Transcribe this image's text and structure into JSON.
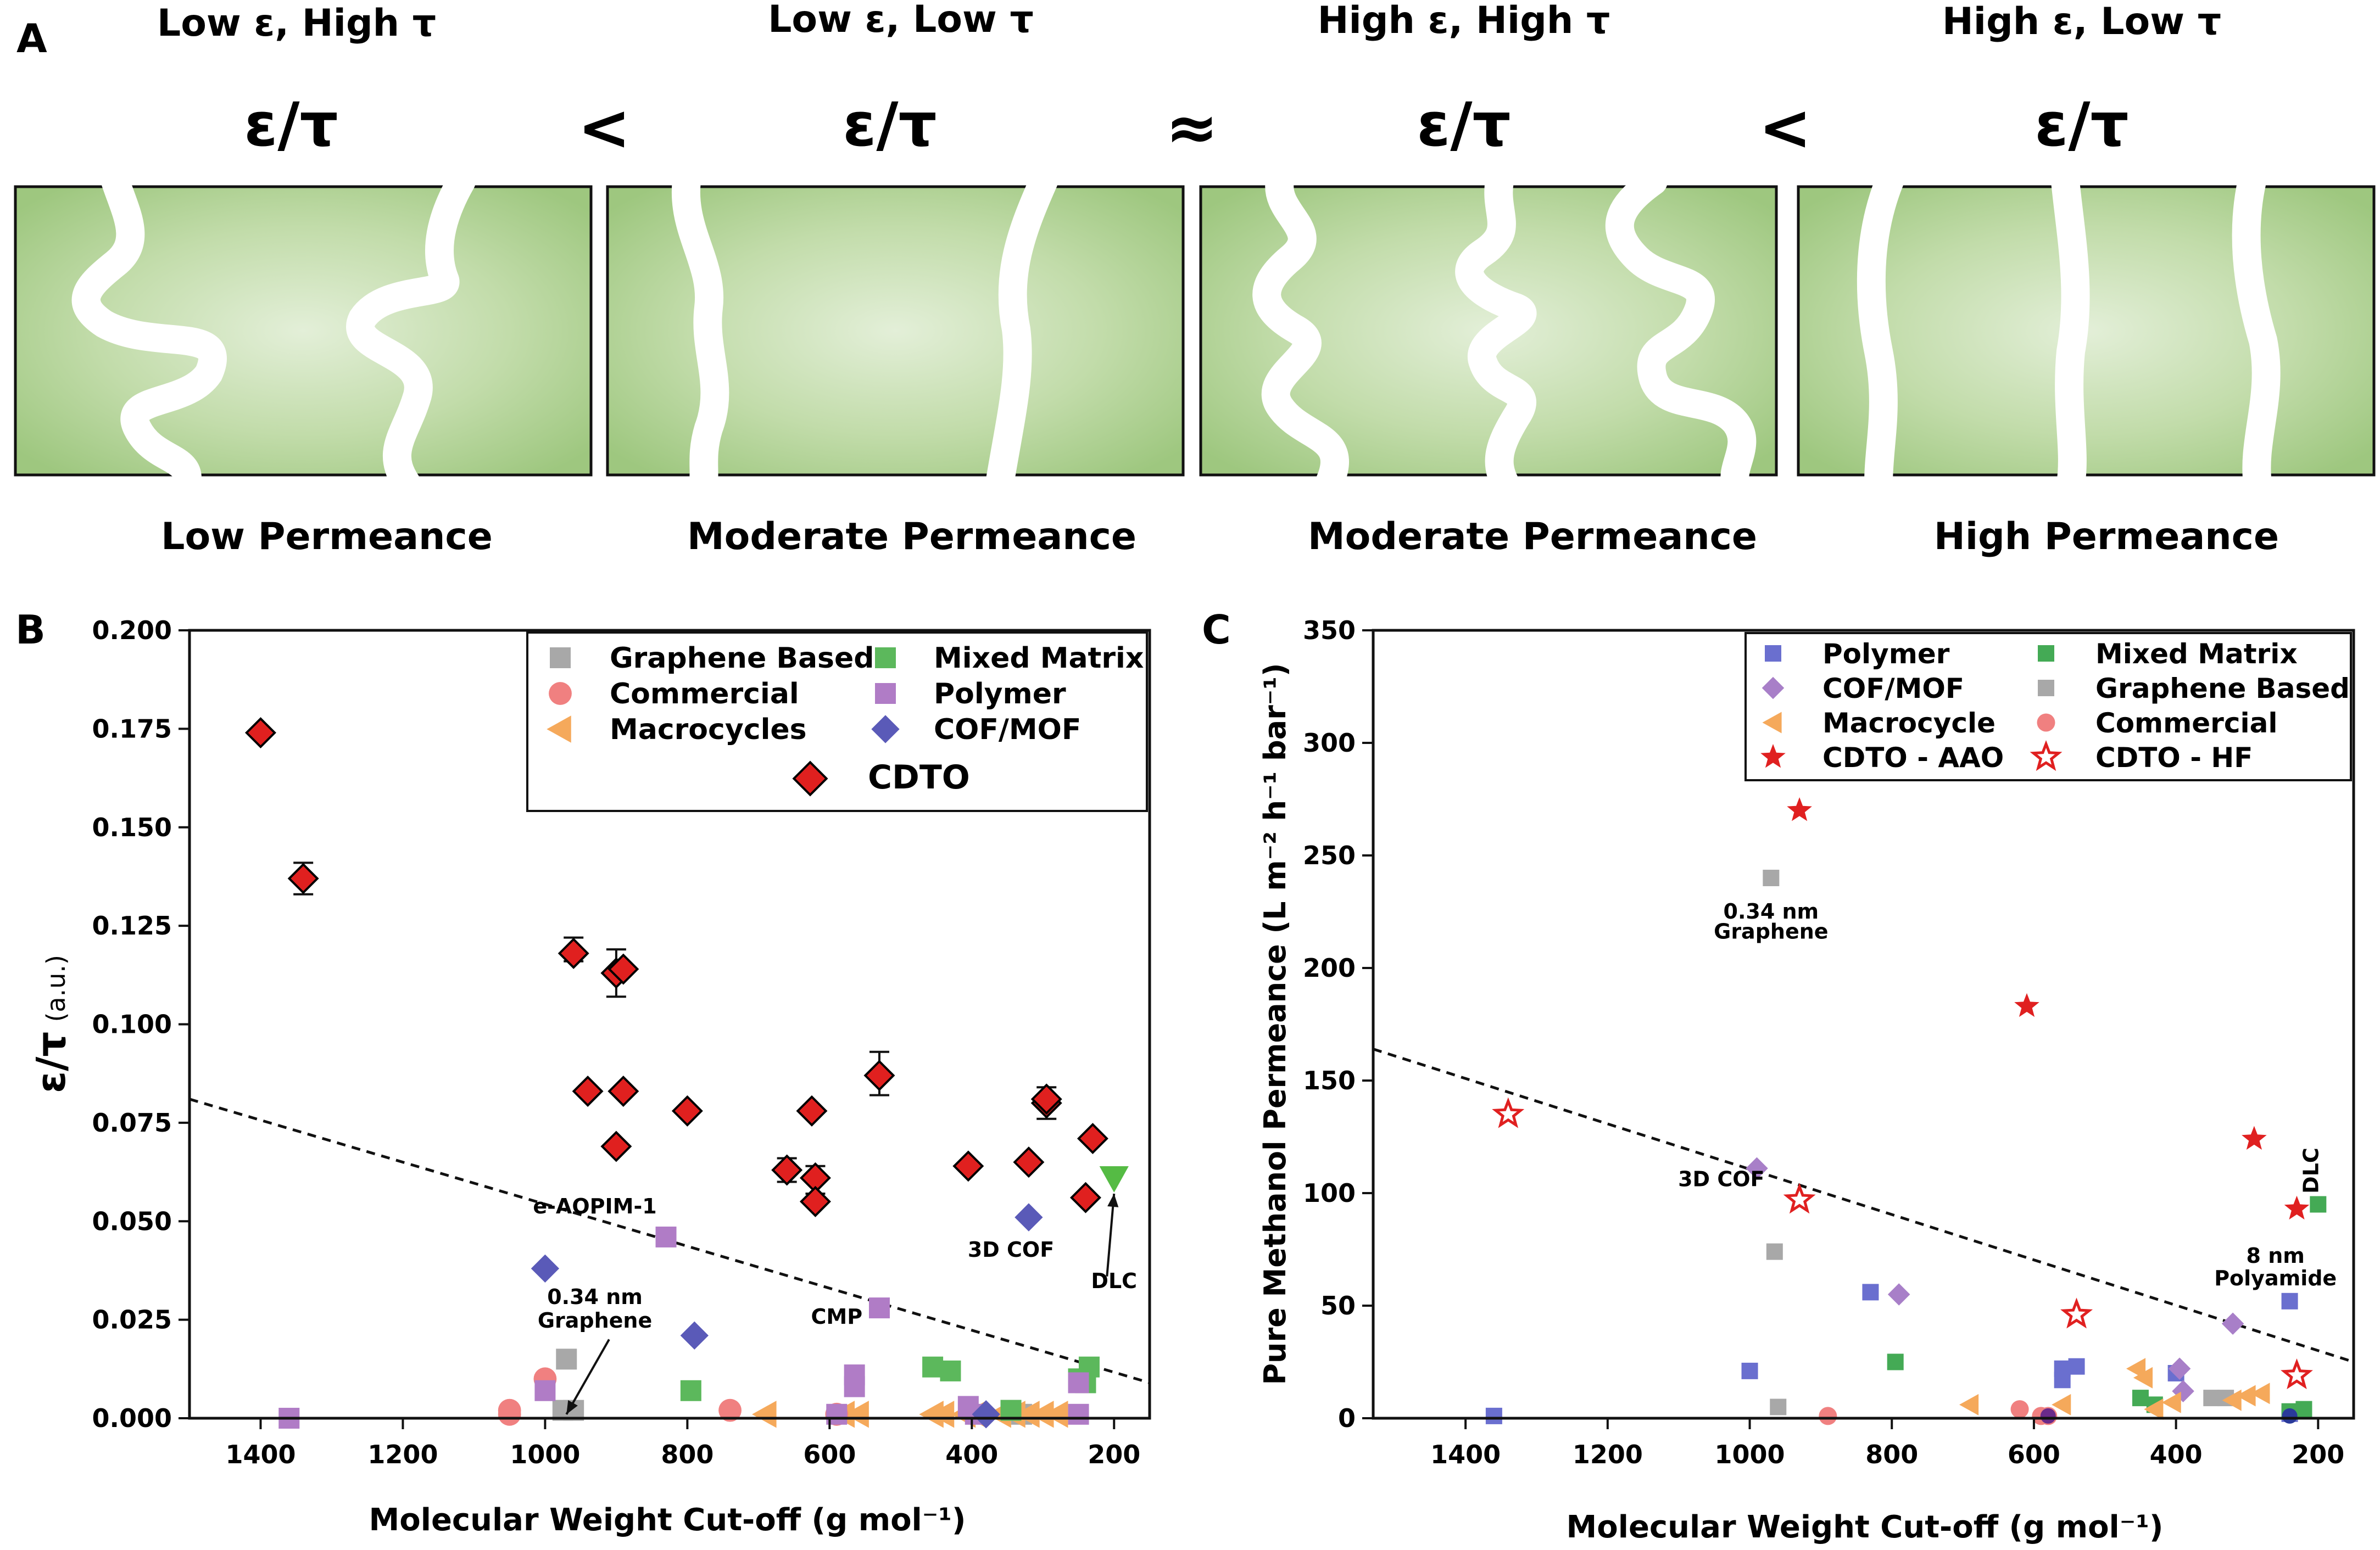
{
  "panel_a": {
    "letter": "A",
    "columns": [
      {
        "condition": "Low ε, High τ",
        "ratio": "ε/τ",
        "result": "Low Permeance"
      },
      {
        "condition": "Low ε,  Low τ",
        "ratio": "ε/τ",
        "result": "Moderate Permeance"
      },
      {
        "condition": "High ε,  High τ",
        "ratio": "ε/τ",
        "result": "Moderate Permeance"
      },
      {
        "condition": "High ε,  Low τ",
        "ratio": "ε/τ",
        "result": "High Permeance"
      }
    ],
    "comparators": [
      "<",
      "≈",
      "<"
    ]
  },
  "chart_data": [
    {
      "panel": "B",
      "type": "scatter",
      "xlabel": "Molecular Weight Cut-off (g mol⁻¹)",
      "ylabel": "ε/τ (a.u.)",
      "ylabel_main": "ε/τ",
      "ylabel_unit": "(a.u.)",
      "xlim": [
        1500,
        150
      ],
      "ylim": [
        0,
        0.2
      ],
      "xticks": [
        1400,
        1200,
        1000,
        800,
        600,
        400,
        200
      ],
      "yticks": [
        0,
        0.025,
        0.05,
        0.075,
        0.1,
        0.125,
        0.15,
        0.175,
        0.2
      ],
      "ytick_labels": [
        "0.000",
        "0.025",
        "0.050",
        "0.075",
        "0.100",
        "0.125",
        "0.150",
        "0.175",
        "0.200"
      ],
      "trendline": {
        "x": [
          1500,
          150
        ],
        "y": [
          0.081,
          0.009
        ],
        "style": "dashed"
      },
      "legend_position": "top-right",
      "series": [
        {
          "name": "Graphene Based",
          "marker": "square",
          "color": "#a8a8a8",
          "points": [
            [
              970,
              0.015
            ],
            [
              975,
              0.002
            ],
            [
              960,
              0.002
            ],
            [
              345,
              0.002
            ],
            [
              330,
              0.001
            ]
          ]
        },
        {
          "name": "Macrocycles",
          "marker": "triangle-left",
          "color": "#f5a95b",
          "points": [
            [
              690,
              0.001
            ],
            [
              580,
              0.001
            ],
            [
              560,
              0.001
            ],
            [
              455,
              0.001
            ],
            [
              440,
              0.001
            ],
            [
              410,
              0.001
            ],
            [
              395,
              0.001
            ],
            [
              360,
              0.001
            ],
            [
              340,
              0.001
            ],
            [
              320,
              0.001
            ],
            [
              300,
              0.001
            ],
            [
              280,
              0.001
            ]
          ]
        },
        {
          "name": "Commercial",
          "marker": "circle",
          "color": "#f08080",
          "points": [
            [
              1050,
              0.002
            ],
            [
              1050,
              0.001
            ],
            [
              1000,
              0.01
            ],
            [
              740,
              0.002
            ],
            [
              590,
              0.001
            ]
          ]
        },
        {
          "name": "Mixed Matrix",
          "marker": "square",
          "color": "#5cb85c",
          "points": [
            [
              795,
              0.007
            ],
            [
              455,
              0.013
            ],
            [
              430,
              0.012
            ],
            [
              345,
              0.002
            ],
            [
              250,
              0.01
            ],
            [
              235,
              0.013
            ],
            [
              240,
              0.009
            ]
          ]
        },
        {
          "name": "Polymer",
          "marker": "square",
          "color": "#b07cc6",
          "points": [
            [
              1360,
              0.0
            ],
            [
              1000,
              0.007
            ],
            [
              830,
              0.046
            ],
            [
              590,
              0.001
            ],
            [
              565,
              0.008
            ],
            [
              565,
              0.011
            ],
            [
              530,
              0.028
            ],
            [
              405,
              0.003
            ],
            [
              395,
              0.001
            ],
            [
              250,
              0.009
            ],
            [
              250,
              0.001
            ]
          ]
        },
        {
          "name": "COF/MOF",
          "marker": "diamond",
          "color": "#5a5ab8",
          "points": [
            [
              1000,
              0.038
            ],
            [
              790,
              0.021
            ],
            [
              320,
              0.051
            ],
            [
              380,
              0.001
            ]
          ]
        },
        {
          "name": "CDTO",
          "marker": "diamond",
          "color": "#e0201f",
          "outline": "#000000",
          "points": [
            [
              1400,
              0.174
            ],
            [
              1340,
              0.137
            ],
            [
              960,
              0.118
            ],
            [
              900,
              0.113
            ],
            [
              890,
              0.114
            ],
            [
              940,
              0.083
            ],
            [
              890,
              0.083
            ],
            [
              900,
              0.069
            ],
            [
              800,
              0.078
            ],
            [
              660,
              0.063
            ],
            [
              620,
              0.061
            ],
            [
              625,
              0.078
            ],
            [
              620,
              0.055
            ],
            [
              530,
              0.087
            ],
            [
              405,
              0.064
            ],
            [
              320,
              0.065
            ],
            [
              295,
              0.08
            ],
            [
              295,
              0.081
            ],
            [
              230,
              0.071
            ],
            [
              240,
              0.056
            ]
          ],
          "error_bars": [
            [
              1340,
              0.133,
              0.141
            ],
            [
              960,
              0.116,
              0.122
            ],
            [
              900,
              0.107,
              0.119
            ],
            [
              660,
              0.06,
              0.066
            ],
            [
              620,
              0.057,
              0.064
            ],
            [
              530,
              0.082,
              0.093
            ],
            [
              295,
              0.076,
              0.084
            ]
          ]
        }
      ],
      "special_points": [
        {
          "label": "DLC",
          "x": 200,
          "y": 0.061,
          "marker": "triangle-down",
          "color": "#55bb44"
        }
      ],
      "annotations": [
        {
          "text": "e-AOPIM-1",
          "x": 930,
          "y": 0.052
        },
        {
          "text": "0.34 nm",
          "x": 930,
          "y": 0.029
        },
        {
          "text": "Graphene",
          "x": 930,
          "y": 0.023
        },
        {
          "text": "CMP",
          "x": 590,
          "y": 0.024
        },
        {
          "text": "3D COF",
          "x": 345,
          "y": 0.041
        },
        {
          "text": "DLC",
          "x": 200,
          "y": 0.033
        }
      ]
    },
    {
      "panel": "C",
      "type": "scatter",
      "xlabel": "Molecular Weight Cut-off (g mol⁻¹)",
      "ylabel": "Pure Methanol Permeance (L m⁻² h⁻¹ bar⁻¹)",
      "xlim": [
        1530,
        150
      ],
      "ylim": [
        0,
        350
      ],
      "xticks": [
        1400,
        1200,
        1000,
        800,
        600,
        400,
        200
      ],
      "yticks": [
        0,
        50,
        100,
        150,
        200,
        250,
        300,
        350
      ],
      "ytick_labels": [
        "0",
        "50",
        "100",
        "150",
        "200",
        "250",
        "300",
        "350"
      ],
      "trendline": {
        "x": [
          1530,
          150
        ],
        "y": [
          164,
          25
        ],
        "style": "dashed"
      },
      "legend_position": "top-right",
      "series": [
        {
          "name": "Polymer",
          "marker": "square",
          "color": "#6a6fcf",
          "points": [
            [
              1360,
              1
            ],
            [
              1000,
              21
            ],
            [
              830,
              56
            ],
            [
              560,
              17
            ],
            [
              560,
              22
            ],
            [
              540,
              23
            ],
            [
              400,
              20
            ],
            [
              240,
              52
            ],
            [
              240,
              2
            ]
          ]
        },
        {
          "name": "Mixed Matrix",
          "marker": "square",
          "color": "#44aa55",
          "points": [
            [
              795,
              25
            ],
            [
              450,
              9
            ],
            [
              430,
              6
            ],
            [
              240,
              3
            ],
            [
              220,
              4
            ],
            [
              200,
              95
            ]
          ]
        },
        {
          "name": "COF/MOF",
          "marker": "diamond",
          "color": "#a87fc8",
          "points": [
            [
              990,
              111
            ],
            [
              790,
              55
            ],
            [
              390,
              12
            ],
            [
              395,
              22
            ],
            [
              320,
              42
            ]
          ]
        },
        {
          "name": "Graphene Based",
          "marker": "square",
          "color": "#a8a8a8",
          "points": [
            [
              970,
              240
            ],
            [
              965,
              74
            ],
            [
              960,
              5
            ],
            [
              350,
              9
            ],
            [
              330,
              9
            ]
          ]
        },
        {
          "name": "Macrocycle",
          "marker": "triangle-left",
          "color": "#f5a95b",
          "points": [
            [
              690,
              6
            ],
            [
              560,
              6
            ],
            [
              455,
              22
            ],
            [
              445,
              18
            ],
            [
              430,
              4
            ],
            [
              405,
              7
            ],
            [
              320,
              8
            ],
            [
              300,
              10
            ],
            [
              280,
              11
            ]
          ]
        },
        {
          "name": "Commercial",
          "marker": "circle",
          "color": "#f08080",
          "points": [
            [
              890,
              1
            ],
            [
              620,
              4
            ],
            [
              590,
              1
            ],
            [
              580,
              1
            ]
          ]
        },
        {
          "name": "CDTO - AAO",
          "marker": "star",
          "color": "#e02020",
          "points": [
            [
              930,
              270
            ],
            [
              610,
              183
            ],
            [
              290,
              124
            ],
            [
              230,
              93
            ]
          ]
        },
        {
          "name": "CDTO - HF",
          "marker": "star-open",
          "color": "#e02020",
          "points": [
            [
              1340,
              135
            ],
            [
              930,
              97
            ],
            [
              540,
              46
            ],
            [
              230,
              19
            ]
          ]
        }
      ],
      "extra_points": [
        {
          "x": 240,
          "y": 1,
          "marker": "circle",
          "color": "#2a3a9a"
        },
        {
          "x": 580,
          "y": 1,
          "marker": "circle",
          "color": "#6a2a8a"
        }
      ],
      "annotations": [
        {
          "text": "0.34 nm",
          "x": 970,
          "y": 222
        },
        {
          "text": "Graphene",
          "x": 970,
          "y": 213
        },
        {
          "text": "3D COF",
          "x": 1040,
          "y": 103
        },
        {
          "text": "8 nm",
          "x": 260,
          "y": 69
        },
        {
          "text": "Polyamide",
          "x": 260,
          "y": 59
        },
        {
          "text": "DLC",
          "x": 200,
          "y": 110
        }
      ]
    }
  ]
}
